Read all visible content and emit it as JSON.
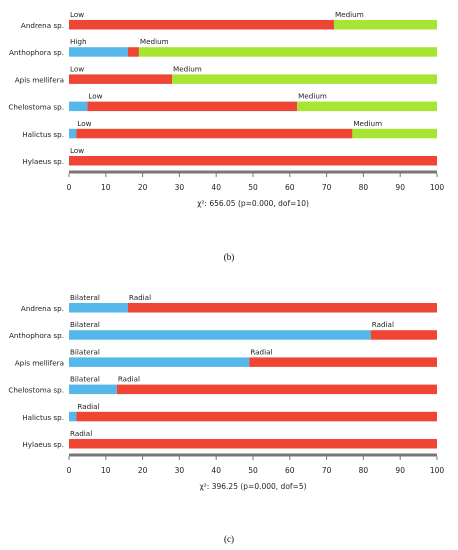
{
  "colors": {
    "low": "#ee4535",
    "high": "#56b7ea",
    "medium": "#a6e633",
    "bilateral": "#56b7ea",
    "radial": "#ee4535",
    "axis": "#777777"
  },
  "chart_data": [
    {
      "type": "bar",
      "stacked": true,
      "orientation": "horizontal",
      "categories": [
        "Andrena sp.",
        "Anthophora sp.",
        "Apis mellifera",
        "Chelostoma sp.",
        "Halictus sp.",
        "Hylaeus sp."
      ],
      "series": [
        {
          "name": "High",
          "color": "#56b7ea",
          "values": [
            0,
            16,
            0,
            5,
            2,
            0
          ]
        },
        {
          "name": "Low",
          "color": "#ee4535",
          "values": [
            72,
            3,
            28,
            57,
            75,
            100
          ]
        },
        {
          "name": "Medium",
          "color": "#a6e633",
          "values": [
            28,
            81,
            72,
            38,
            23,
            0
          ]
        }
      ],
      "bar_labels": [
        [
          {
            "text": "Low",
            "at": 0
          },
          {
            "text": "Medium",
            "at": 72
          }
        ],
        [
          {
            "text": "High",
            "at": 0
          },
          {
            "text": "Medium",
            "at": 19
          }
        ],
        [
          {
            "text": "Low",
            "at": 0
          },
          {
            "text": "Medium",
            "at": 28
          }
        ],
        [
          {
            "text": "Low",
            "at": 5
          },
          {
            "text": "Medium",
            "at": 62
          }
        ],
        [
          {
            "text": "Low",
            "at": 2
          },
          {
            "text": "Medium",
            "at": 77
          }
        ],
        [
          {
            "text": "Low",
            "at": 0
          }
        ]
      ],
      "xlim": [
        0,
        100
      ],
      "xticks": [
        "0",
        "10",
        "20",
        "30",
        "40",
        "50",
        "60",
        "70",
        "80",
        "90",
        "100"
      ],
      "stat": "χ²: 656.05 (p=0.000, dof=10)",
      "caption": "(b)"
    },
    {
      "type": "bar",
      "stacked": true,
      "orientation": "horizontal",
      "categories": [
        "Andrena sp.",
        "Anthophora sp.",
        "Apis mellifera",
        "Chelostoma sp.",
        "Halictus sp.",
        "Hylaeus sp."
      ],
      "series": [
        {
          "name": "Bilateral",
          "color": "#56b7ea",
          "values": [
            16,
            82,
            49,
            13,
            2,
            0
          ]
        },
        {
          "name": "Radial",
          "color": "#ee4535",
          "values": [
            84,
            18,
            51,
            87,
            98,
            100
          ]
        }
      ],
      "bar_labels": [
        [
          {
            "text": "Bilateral",
            "at": 0
          },
          {
            "text": "Radial",
            "at": 16
          }
        ],
        [
          {
            "text": "Bilateral",
            "at": 0
          },
          {
            "text": "Radial",
            "at": 82
          }
        ],
        [
          {
            "text": "Bilateral",
            "at": 0
          },
          {
            "text": "Radial",
            "at": 49
          }
        ],
        [
          {
            "text": "Bilateral",
            "at": 0
          },
          {
            "text": "Radial",
            "at": 13
          }
        ],
        [
          {
            "text": "Radial",
            "at": 2
          }
        ],
        [
          {
            "text": "Radial",
            "at": 0
          }
        ]
      ],
      "xlim": [
        0,
        100
      ],
      "xticks": [
        "0",
        "10",
        "20",
        "30",
        "40",
        "50",
        "60",
        "70",
        "80",
        "90",
        "100"
      ],
      "stat": "χ²: 396.25 (p=0.000, dof=5)",
      "caption": "(c)"
    }
  ]
}
